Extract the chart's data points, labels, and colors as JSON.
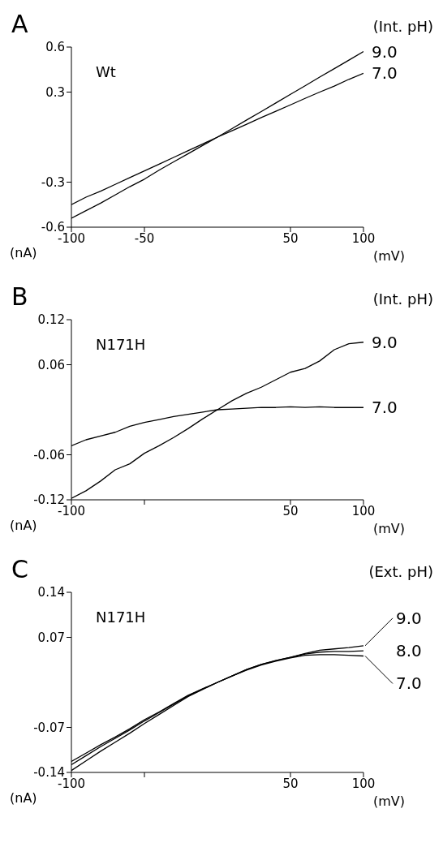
{
  "chart_data": [
    {
      "type": "line",
      "title": "A",
      "subtitle": "Wt",
      "legend_title": "(Int. pH)",
      "xlabel": "(mV)",
      "ylabel": "(nA)",
      "x": [
        -100,
        -90,
        -80,
        -70,
        -60,
        -50,
        -40,
        -30,
        -20,
        -10,
        0,
        10,
        20,
        30,
        40,
        50,
        60,
        70,
        80,
        90,
        100
      ],
      "series": [
        {
          "name": "9.0",
          "color": "#000000",
          "values": [
            -0.54,
            -0.49,
            -0.44,
            -0.385,
            -0.33,
            -0.28,
            -0.22,
            -0.165,
            -0.11,
            -0.055,
            0,
            0.057,
            0.114,
            0.17,
            0.228,
            0.285,
            0.342,
            0.4,
            0.456,
            0.513,
            0.57
          ]
        },
        {
          "name": "7.0",
          "color": "#000000",
          "values": [
            -0.45,
            -0.4,
            -0.36,
            -0.315,
            -0.27,
            -0.225,
            -0.18,
            -0.135,
            -0.09,
            -0.045,
            0,
            0.043,
            0.086,
            0.13,
            0.172,
            0.215,
            0.258,
            0.3,
            0.34,
            0.385,
            0.425
          ]
        }
      ],
      "xlim": [
        -100,
        100
      ],
      "xticks": [
        -100,
        -50,
        50,
        100
      ],
      "ylim": [
        -0.6,
        0.6
      ],
      "yticks": [
        -0.6,
        -0.3,
        0.3,
        0.6
      ],
      "grid": false,
      "legend": false,
      "marker": "none",
      "line_style": "solid"
    },
    {
      "type": "line",
      "title": "B",
      "subtitle": "N171H",
      "legend_title": "(Int. pH)",
      "xlabel": "(mV)",
      "ylabel": "(nA)",
      "x": [
        -100,
        -90,
        -80,
        -70,
        -60,
        -50,
        -40,
        -30,
        -20,
        -10,
        0,
        10,
        20,
        30,
        40,
        50,
        60,
        70,
        80,
        90,
        100
      ],
      "series": [
        {
          "name": "9.0",
          "color": "#000000",
          "values": [
            -0.118,
            -0.108,
            -0.095,
            -0.08,
            -0.072,
            -0.058,
            -0.048,
            -0.037,
            -0.025,
            -0.012,
            0,
            0.012,
            0.022,
            0.03,
            0.04,
            0.05,
            0.055,
            0.065,
            0.08,
            0.088,
            0.09
          ]
        },
        {
          "name": "7.0",
          "color": "#000000",
          "values": [
            -0.048,
            -0.04,
            -0.035,
            -0.03,
            -0.022,
            -0.017,
            -0.013,
            -0.009,
            -0.006,
            -0.003,
            0,
            0.001,
            0.002,
            0.003,
            0.003,
            0.004,
            0.003,
            0.004,
            0.003,
            0.003,
            0.003
          ]
        }
      ],
      "xlim": [
        -100,
        100
      ],
      "xticks": [
        -100,
        {
          "value": -50,
          "label": null
        },
        50,
        100
      ],
      "ylim": [
        -0.12,
        0.12
      ],
      "yticks": [
        -0.12,
        -0.06,
        0.06,
        0.12
      ],
      "grid": false,
      "legend": false,
      "marker": "none",
      "line_style": "solid"
    },
    {
      "type": "line",
      "title": "C",
      "subtitle": "N171H",
      "legend_title": "(Ext. pH)",
      "xlabel": "(mV)",
      "ylabel": "(nA)",
      "x": [
        -100,
        -90,
        -80,
        -70,
        -60,
        -50,
        -40,
        -30,
        -20,
        -10,
        0,
        10,
        20,
        30,
        40,
        50,
        60,
        70,
        80,
        90,
        100
      ],
      "series": [
        {
          "name": "9.0",
          "color": "#000000",
          "values": [
            -0.123,
            -0.11,
            -0.097,
            -0.085,
            -0.072,
            -0.058,
            -0.046,
            -0.033,
            -0.02,
            -0.01,
            0,
            0.01,
            0.02,
            0.028,
            0.034,
            0.039,
            0.045,
            0.05,
            0.052,
            0.054,
            0.057
          ]
        },
        {
          "name": "8.0",
          "color": "#000000",
          "values": [
            -0.128,
            -0.114,
            -0.1,
            -0.087,
            -0.074,
            -0.06,
            -0.047,
            -0.034,
            -0.021,
            -0.01,
            0,
            0.01,
            0.02,
            0.028,
            0.034,
            0.039,
            0.044,
            0.047,
            0.048,
            0.048,
            0.049
          ]
        },
        {
          "name": "7.0",
          "color": "#000000",
          "values": [
            -0.137,
            -0.122,
            -0.107,
            -0.093,
            -0.079,
            -0.064,
            -0.05,
            -0.036,
            -0.022,
            -0.011,
            0,
            0.01,
            0.019,
            0.027,
            0.033,
            0.038,
            0.042,
            0.043,
            0.043,
            0.042,
            0.041
          ]
        }
      ],
      "xlim": [
        -100,
        100
      ],
      "xticks": [
        -100,
        {
          "value": -50,
          "label": null
        },
        50,
        100
      ],
      "ylim": [
        -0.14,
        0.14
      ],
      "yticks": [
        -0.14,
        -0.07,
        0.07,
        0.14
      ],
      "grid": false,
      "legend": false,
      "marker": "none",
      "line_style": "solid"
    }
  ]
}
